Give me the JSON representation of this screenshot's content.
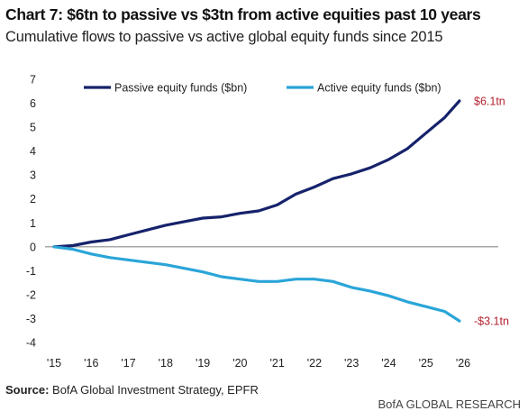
{
  "header": {
    "title": "Chart 7: $6tn to passive vs $3tn from active equities past 10 years",
    "subtitle": "Cumulative flows to passive vs active global equity funds since 2015"
  },
  "footer": {
    "source_label": "Source:",
    "source_text": "BofA Global Investment Strategy, EPFR",
    "brand": "BofA GLOBAL RESEARCH"
  },
  "colors": {
    "passive": "#16226b",
    "active": "#2aa5d8",
    "end_label": "#b3232f",
    "zero_line": "#8a8a8a"
  },
  "chart_data": {
    "type": "line",
    "title": "Chart 7: $6tn to passive vs $3tn from active equities past 10 years",
    "subtitle": "Cumulative flows to passive vs active global equity funds since 2015",
    "xlabel": "",
    "ylabel": "",
    "x_ticks": [
      "'15",
      "'16",
      "'17",
      "'18",
      "'19",
      "'20",
      "'21",
      "'22",
      "'23",
      "'24",
      "'25",
      "'26"
    ],
    "xlim": [
      2015,
      2026
    ],
    "yticks": [
      7,
      6,
      5,
      4,
      3,
      2,
      1,
      0,
      -1,
      -2,
      -3,
      -4
    ],
    "ylim": [
      -4,
      7
    ],
    "grid": false,
    "legend_position": "top",
    "series": [
      {
        "name": "Passive equity funds ($bn)",
        "end_label": "$6.1tn",
        "x": [
          2015,
          2015.5,
          2016,
          2016.5,
          2017,
          2017.5,
          2018,
          2018.5,
          2019,
          2019.5,
          2020,
          2020.5,
          2021,
          2021.5,
          2022,
          2022.5,
          2023,
          2023.5,
          2024,
          2024.5,
          2025,
          2025.5,
          2025.9
        ],
        "y": [
          0,
          0.05,
          0.2,
          0.3,
          0.5,
          0.7,
          0.9,
          1.05,
          1.2,
          1.25,
          1.4,
          1.5,
          1.75,
          2.2,
          2.5,
          2.85,
          3.05,
          3.3,
          3.65,
          4.1,
          4.75,
          5.4,
          6.1
        ]
      },
      {
        "name": "Active equity funds ($bn)",
        "end_label": "-$3.1tn",
        "x": [
          2015,
          2015.5,
          2016,
          2016.5,
          2017,
          2017.5,
          2018,
          2018.5,
          2019,
          2019.5,
          2020,
          2020.5,
          2021,
          2021.5,
          2022,
          2022.5,
          2023,
          2023.5,
          2024,
          2024.5,
          2025,
          2025.5,
          2025.9
        ],
        "y": [
          0,
          -0.1,
          -0.3,
          -0.45,
          -0.55,
          -0.65,
          -0.75,
          -0.9,
          -1.05,
          -1.25,
          -1.35,
          -1.45,
          -1.45,
          -1.35,
          -1.35,
          -1.45,
          -1.7,
          -1.85,
          -2.05,
          -2.3,
          -2.5,
          -2.7,
          -3.1
        ]
      }
    ]
  }
}
